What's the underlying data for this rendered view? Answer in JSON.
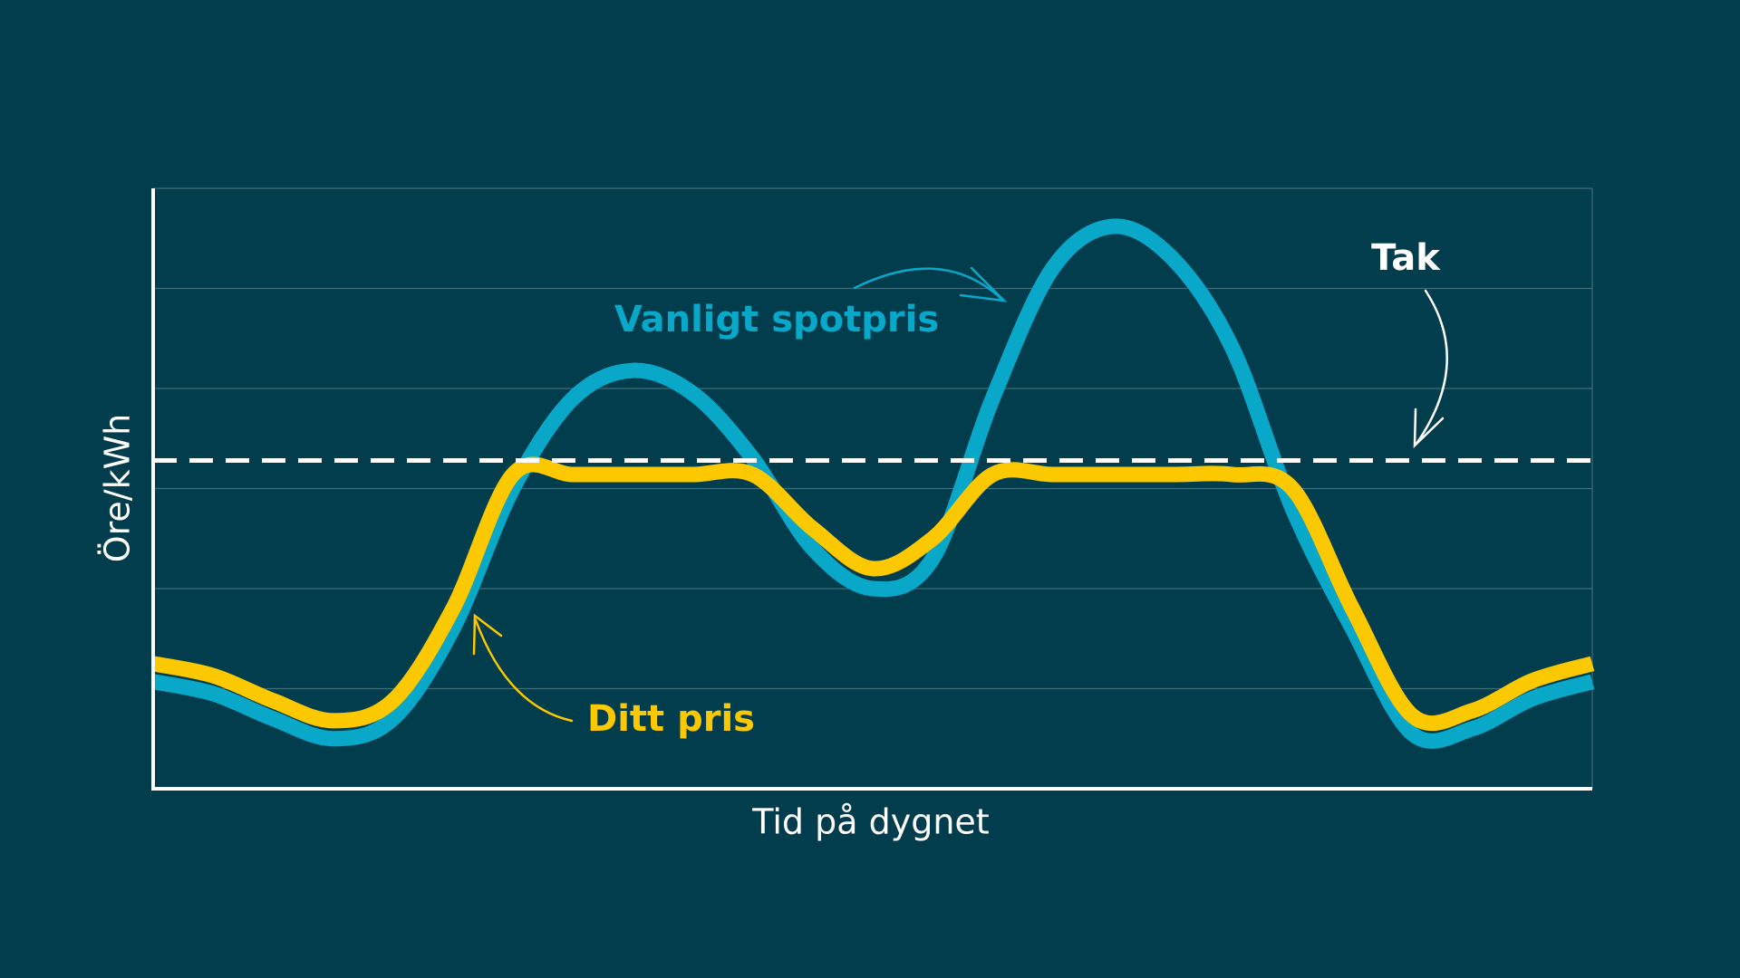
{
  "chart_data": {
    "type": "line",
    "x": [
      0,
      1,
      2,
      3,
      4,
      5,
      6,
      7,
      8,
      9,
      10,
      11,
      12,
      13,
      14,
      15,
      16,
      17,
      18,
      19,
      20,
      21,
      22,
      23,
      24
    ],
    "xlim": [
      0,
      24
    ],
    "ylim": [
      0,
      6
    ],
    "x_label": "Tid på dygnet",
    "y_label": "Öre/kWh",
    "series": [
      {
        "name": "Vanligt spotpris",
        "color": "#0aa8c8",
        "values": [
          1.07,
          0.95,
          0.7,
          0.5,
          0.7,
          1.6,
          3.0,
          3.9,
          4.18,
          3.95,
          3.3,
          2.4,
          2.0,
          2.3,
          3.9,
          5.2,
          5.62,
          5.3,
          4.4,
          2.8,
          1.6,
          0.55,
          0.6,
          0.9,
          1.07
        ]
      },
      {
        "name": "Ditt pris",
        "color": "#fcc800",
        "values": [
          1.25,
          1.13,
          0.88,
          0.68,
          0.88,
          1.8,
          3.14,
          3.14,
          3.14,
          3.14,
          3.14,
          2.6,
          2.2,
          2.5,
          3.14,
          3.14,
          3.14,
          3.14,
          3.14,
          3.0,
          1.8,
          0.73,
          0.78,
          1.08,
          1.25
        ]
      }
    ],
    "cap": {
      "name": "Tak",
      "value": 3.28,
      "color": "#ffffff"
    }
  }
}
